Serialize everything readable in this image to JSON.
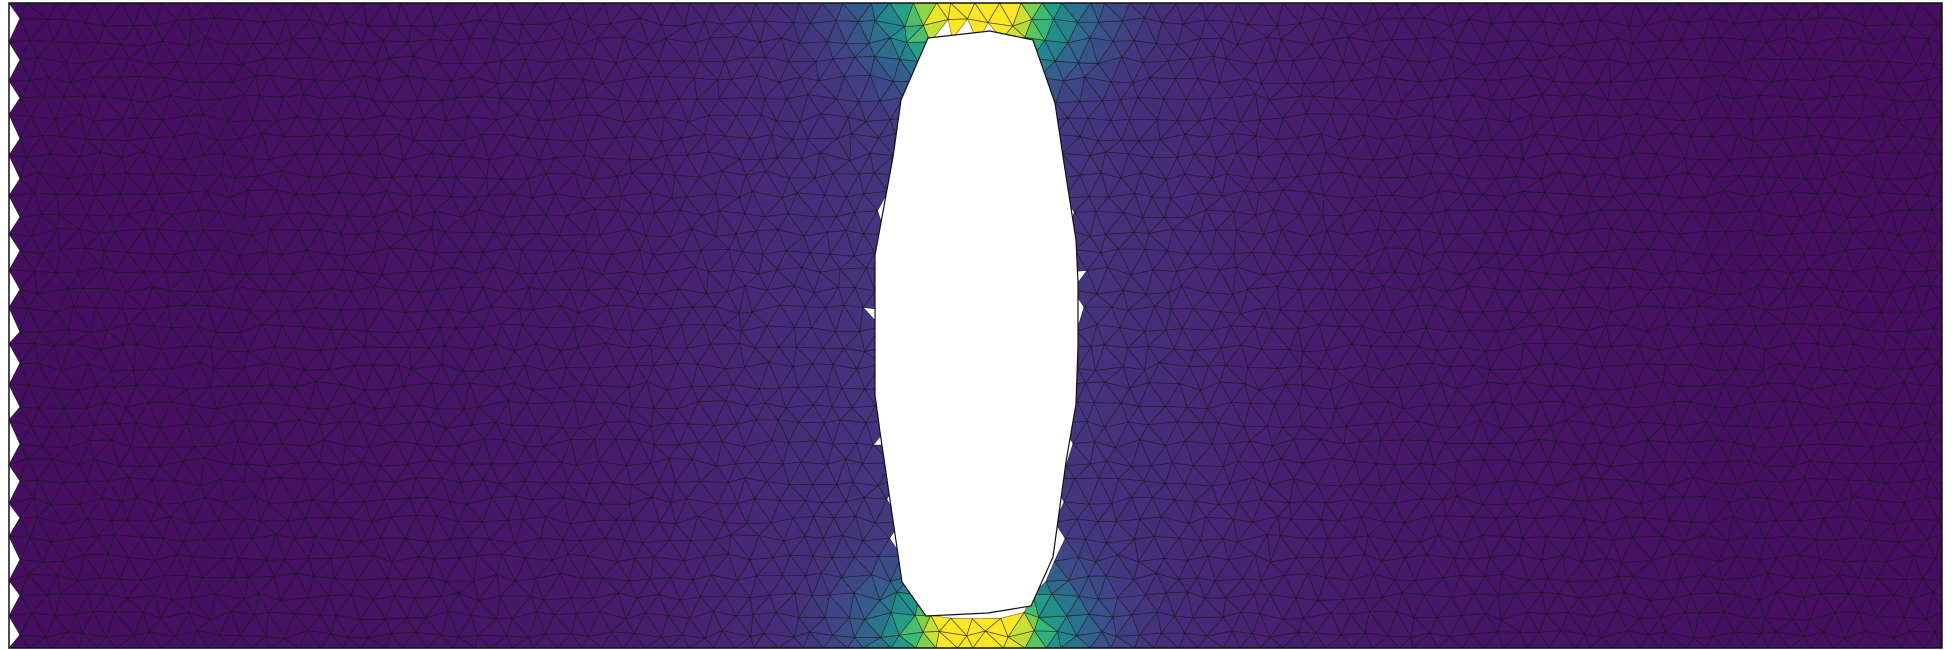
{
  "scene": {
    "type": "finite-element-mesh-plot",
    "colormap": "viridis",
    "background_color": "#ffffff",
    "mesh_line_color": "#1a1a1a",
    "domain_outline_color": "#111111",
    "hole_fill_color": "#ffffff",
    "field_low_color": "#3b0a4f",
    "field_high_color": "#d9d51f",
    "shape": "rectangular plate with elongated vertical hole, stress concentrated at top and bottom ligaments"
  }
}
